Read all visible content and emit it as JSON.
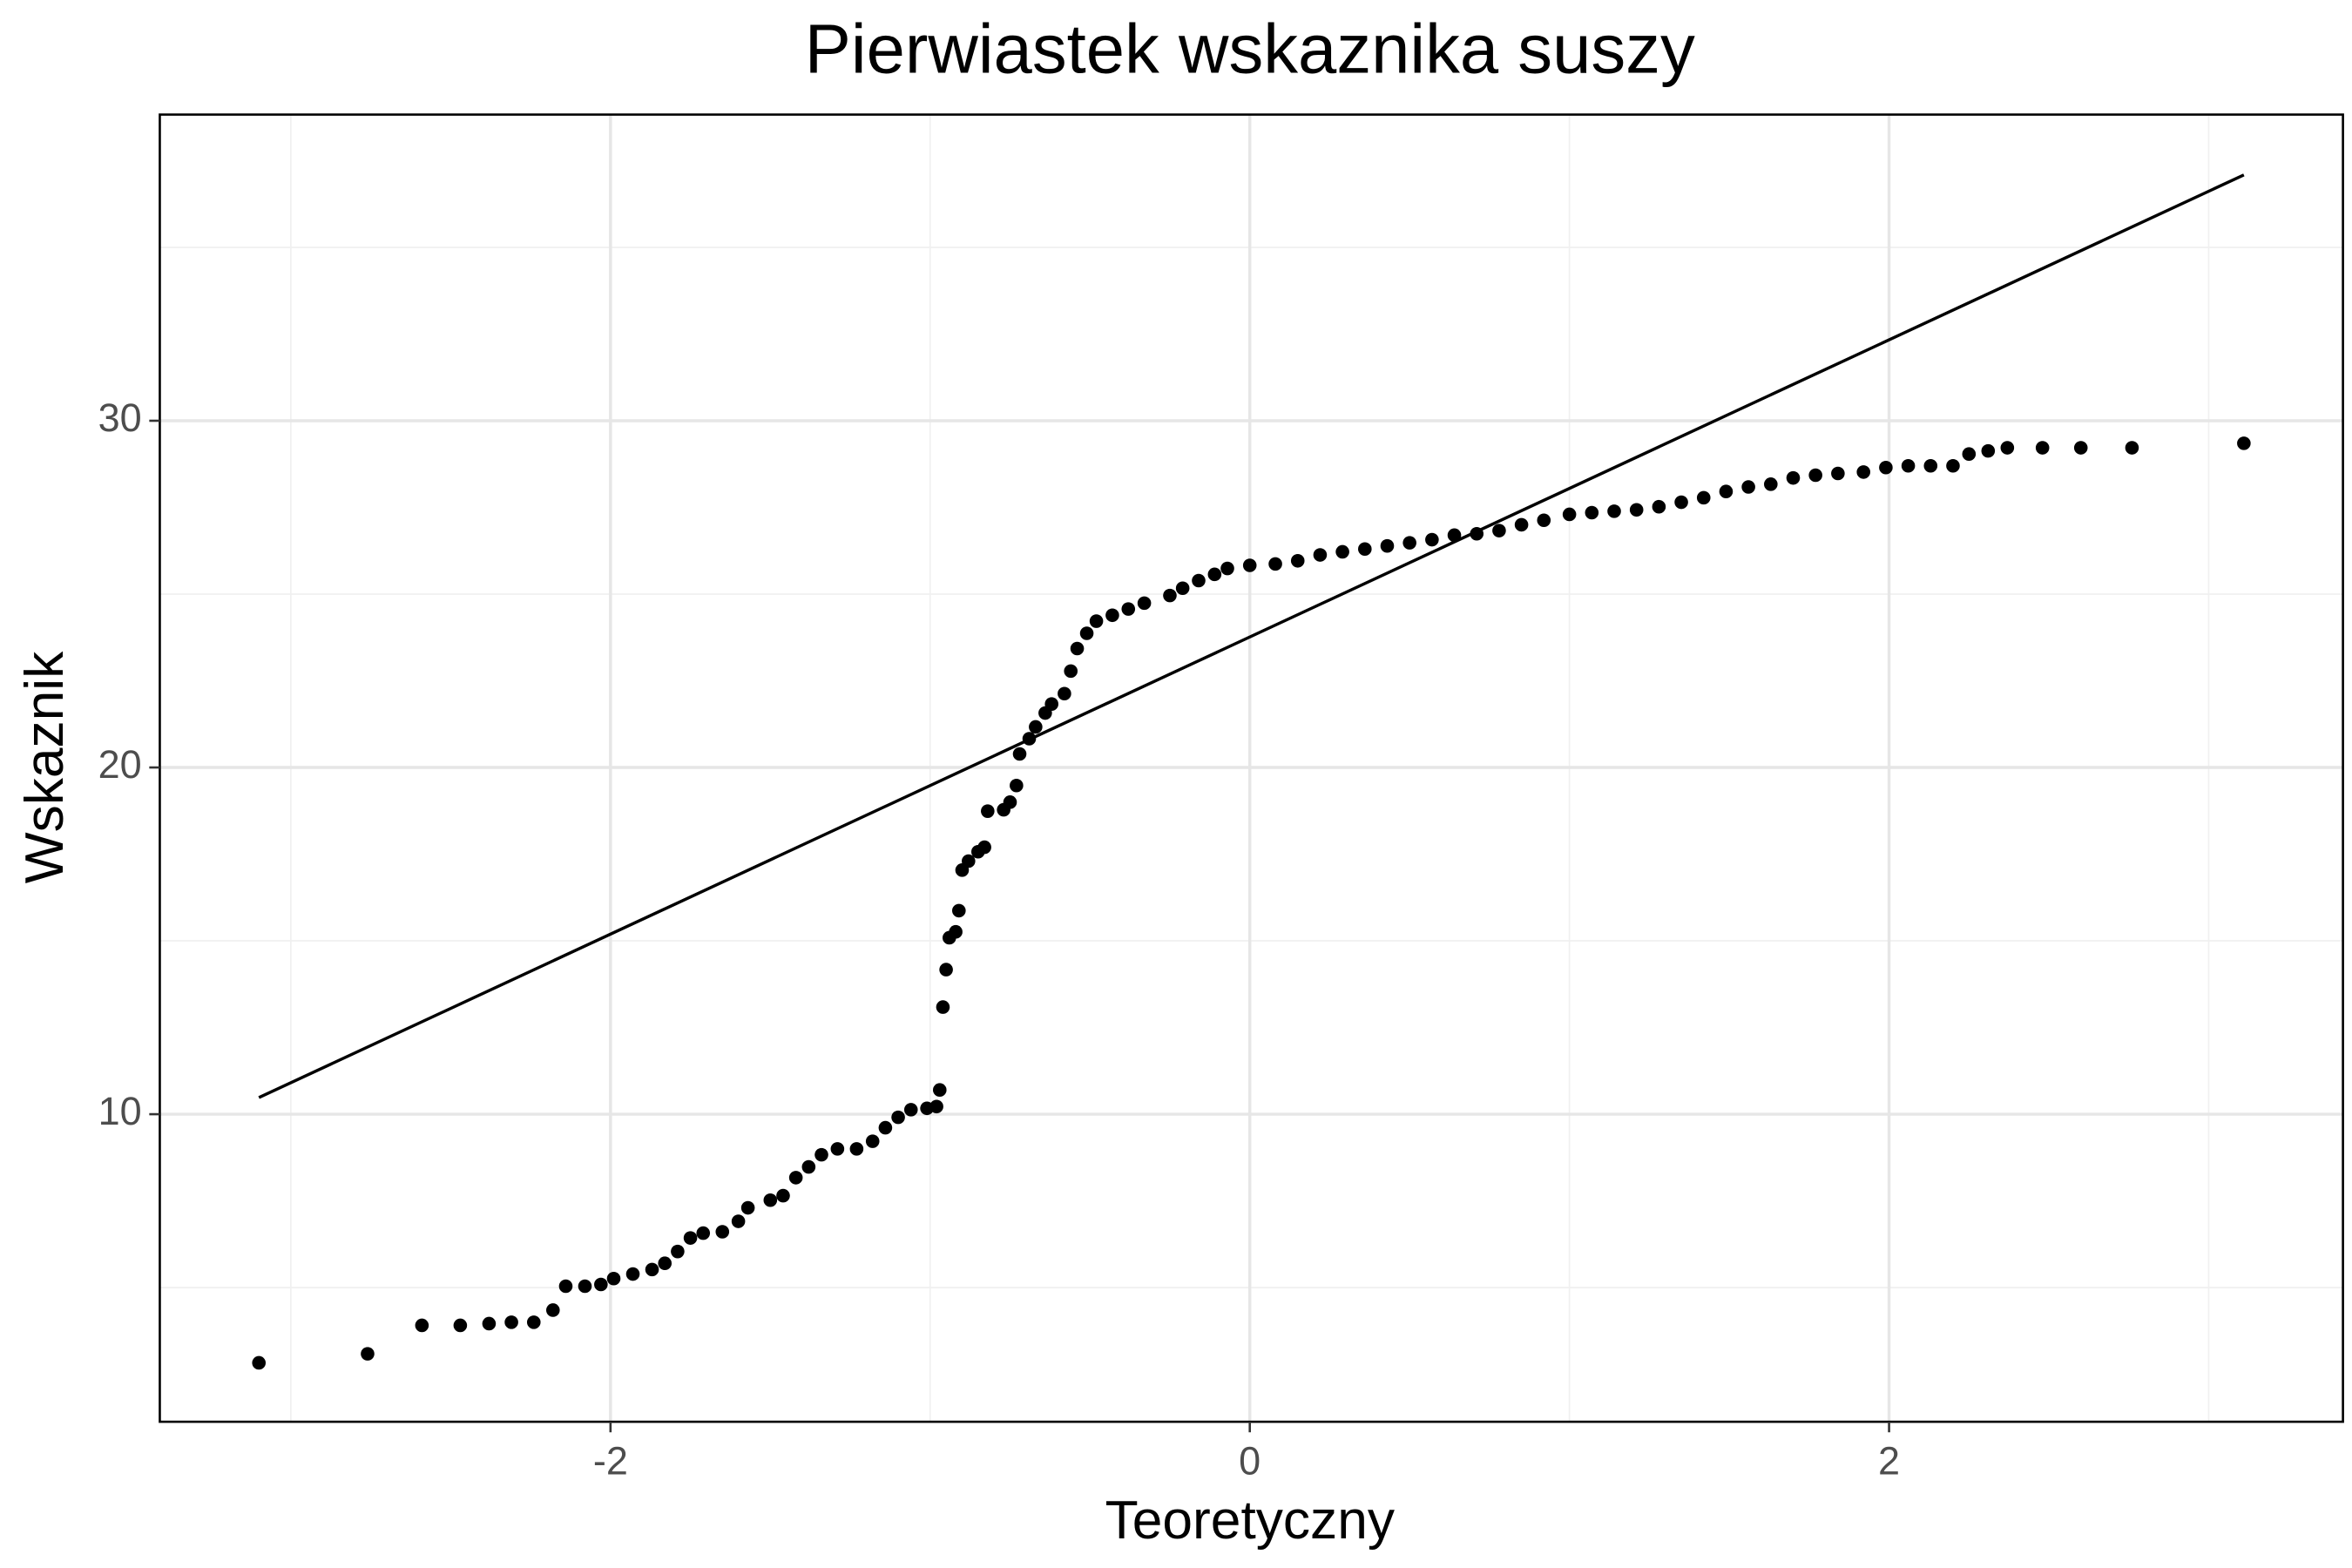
{
  "chart_data": {
    "type": "scatter",
    "title": "Pierwiastek wskaznika suszy",
    "x_label": "Teoretyczny",
    "y_label": "Wskaznik",
    "x": [
      -3.1,
      -2.76,
      -2.59,
      -2.47,
      -2.38,
      -2.31,
      -2.24,
      -2.18,
      -2.14,
      -2.08,
      -2.03,
      -1.99,
      -1.93,
      -1.87,
      -1.83,
      -1.79,
      -1.75,
      -1.71,
      -1.65,
      -1.6,
      -1.57,
      -1.5,
      -1.46,
      -1.42,
      -1.38,
      -1.34,
      -1.29,
      -1.23,
      -1.18,
      -1.14,
      -1.1,
      -1.06,
      -1.01,
      -0.98,
      -0.97,
      -0.96,
      -0.95,
      -0.94,
      -0.92,
      -0.91,
      -0.9,
      -0.88,
      -0.85,
      -0.83,
      -0.82,
      -0.77,
      -0.75,
      -0.73,
      -0.72,
      -0.69,
      -0.67,
      -0.64,
      -0.62,
      -0.58,
      -0.56,
      -0.54,
      -0.51,
      -0.48,
      -0.43,
      -0.38,
      -0.33,
      -0.25,
      -0.21,
      -0.16,
      -0.11,
      -0.07,
      0.0,
      0.08,
      0.15,
      0.22,
      0.29,
      0.36,
      0.43,
      0.5,
      0.57,
      0.64,
      0.71,
      0.78,
      0.85,
      0.92,
      1.0,
      1.07,
      1.14,
      1.21,
      1.28,
      1.35,
      1.42,
      1.49,
      1.56,
      1.63,
      1.7,
      1.77,
      1.84,
      1.92,
      1.99,
      2.06,
      2.13,
      2.2,
      2.25,
      2.31,
      2.37,
      2.48,
      2.6,
      2.76,
      3.11
    ],
    "values": [
      2.83,
      3.09,
      3.91,
      3.91,
      3.96,
      4.0,
      4.0,
      4.35,
      5.04,
      5.04,
      5.09,
      5.26,
      5.39,
      5.52,
      5.7,
      6.04,
      6.43,
      6.57,
      6.61,
      6.91,
      7.3,
      7.52,
      7.65,
      8.17,
      8.48,
      8.83,
      9.0,
      9.0,
      9.22,
      9.61,
      9.91,
      10.13,
      10.17,
      10.22,
      10.7,
      13.09,
      14.17,
      15.09,
      15.26,
      15.87,
      17.04,
      17.3,
      17.57,
      17.7,
      18.74,
      18.78,
      19.0,
      19.48,
      20.39,
      20.83,
      21.17,
      21.57,
      21.83,
      22.13,
      22.78,
      23.43,
      23.87,
      24.22,
      24.39,
      24.57,
      24.74,
      24.96,
      25.17,
      25.39,
      25.57,
      25.74,
      25.83,
      25.87,
      25.96,
      26.13,
      26.22,
      26.3,
      26.39,
      26.48,
      26.57,
      26.7,
      26.74,
      26.83,
      27.0,
      27.13,
      27.3,
      27.35,
      27.39,
      27.43,
      27.52,
      27.65,
      27.78,
      27.96,
      28.09,
      28.17,
      28.35,
      28.43,
      28.48,
      28.52,
      28.65,
      28.7,
      28.7,
      28.7,
      29.04,
      29.13,
      29.22,
      29.22,
      29.22,
      29.22,
      29.35
    ],
    "color": "#000000",
    "line": {
      "x": [
        -3.1,
        3.11
      ],
      "values": [
        10.48,
        37.09
      ],
      "color": "#000000"
    },
    "xlim": [
      -3.41,
      3.42
    ],
    "ylim": [
      1.13,
      38.83
    ],
    "xticks": [
      -2,
      0,
      2
    ],
    "yticks": [
      10,
      20,
      30
    ],
    "x_minor_ticks": [
      -3,
      -1,
      1,
      3
    ],
    "y_minor_ticks": [
      5,
      15,
      25,
      35
    ],
    "grid": true
  }
}
